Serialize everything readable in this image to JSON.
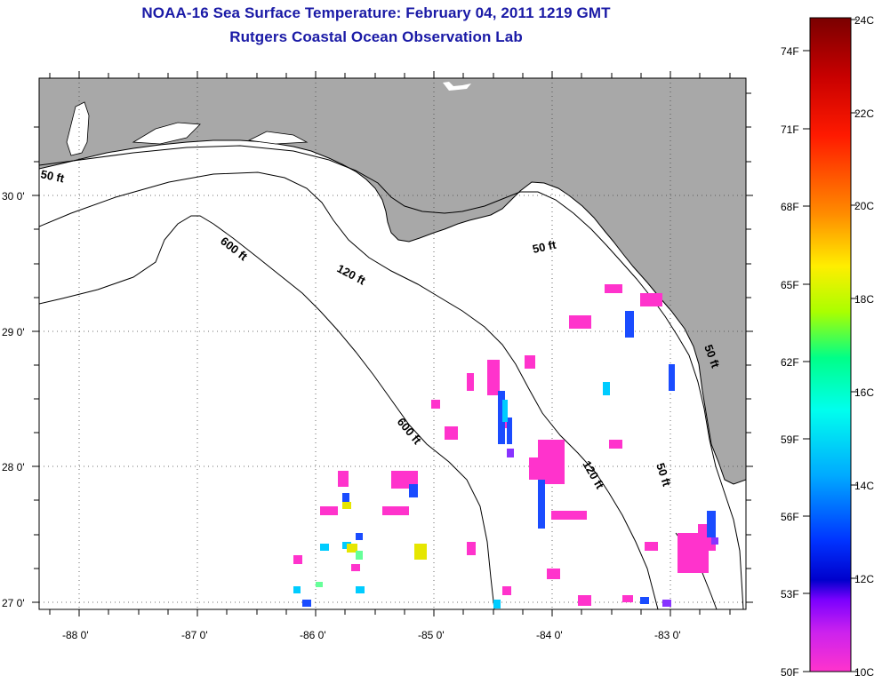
{
  "header": {
    "title": "NOAA-16 Sea Surface Temperature:  February 04, 2011 1219 GMT",
    "subtitle": "Rutgers Coastal Ocean Observation Lab"
  },
  "map": {
    "lon_labels": [
      "-88 0'",
      "-87 0'",
      "-86 0'",
      "-85 0'",
      "-84 0'",
      "-83 0'"
    ],
    "lat_labels": [
      "30 0'",
      "29 0'",
      "28 0'",
      "27 0'"
    ],
    "contours": [
      "50 ft",
      "600 ft",
      "120 ft",
      "50 ft",
      "600 ft",
      "120 ft",
      "50 ft",
      "50 ft"
    ],
    "colors": {
      "land": "#a8a8a8",
      "ocean": "#ffffff",
      "contour": "#000000"
    }
  },
  "colorbar": {
    "f_labels": [
      "74F",
      "71F",
      "68F",
      "65F",
      "62F",
      "59F",
      "56F",
      "53F",
      "50F"
    ],
    "c_labels": [
      "24C",
      "22C",
      "20C",
      "18C",
      "16C",
      "14C",
      "12C",
      "10C"
    ],
    "scale_colors": [
      "#7a0000",
      "#ff0000",
      "#ff7f00",
      "#ffff00",
      "#00ff66",
      "#00ffff",
      "#0066ff",
      "#0000ff",
      "#7f00ff",
      "#ff33cc"
    ]
  }
}
